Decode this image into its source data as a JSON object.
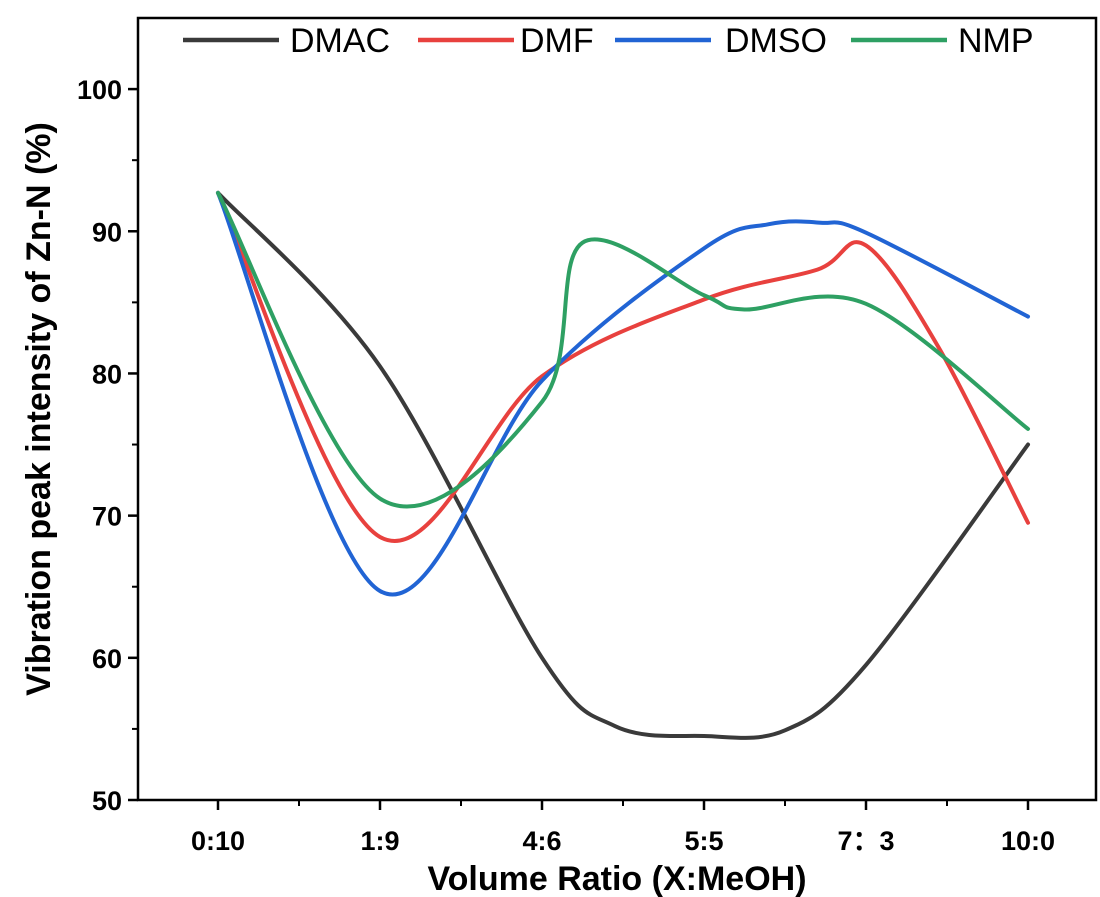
{
  "chart_data": {
    "type": "line",
    "title": "",
    "xlabel": "Volume Ratio (X:MeOH)",
    "ylabel": "Vibration peak intensity of Zn-N (%)",
    "categories": [
      "0:10",
      "1:9",
      "4:6",
      "5:5",
      "7：3",
      "10:0"
    ],
    "ylim": [
      50,
      105
    ],
    "yticks": [
      50,
      60,
      70,
      80,
      90,
      100
    ],
    "grid": false,
    "legend_position": "top",
    "series": [
      {
        "name": "DMAC",
        "color": "#3a3a3a",
        "values": [
          92.7,
          80.5,
          60.0,
          54.5,
          59.5,
          75.0
        ],
        "extra": [
          [
            2.45,
            55.2
          ],
          [
            3.5,
            54.9
          ]
        ]
      },
      {
        "name": "DMF",
        "color": "#e8413e",
        "values": [
          92.7,
          68.5,
          79.8,
          85.2,
          89.0,
          69.5
        ],
        "extra": [
          [
            3.7,
            87.3
          ],
          [
            4.45,
            81.8
          ]
        ]
      },
      {
        "name": "DMSO",
        "color": "#2164d4",
        "values": [
          92.7,
          64.7,
          79.5,
          88.8,
          89.9,
          84.0
        ],
        "extra": [
          [
            3.4,
            90.5
          ],
          [
            3.72,
            90.6
          ]
        ]
      },
      {
        "name": "NMP",
        "color": "#2ea063",
        "values": [
          92.7,
          71.2,
          78.0,
          85.5,
          84.9,
          76.1
        ],
        "extra": [
          [
            2.25,
            89.2
          ],
          [
            3.25,
            84.5
          ]
        ]
      }
    ]
  }
}
